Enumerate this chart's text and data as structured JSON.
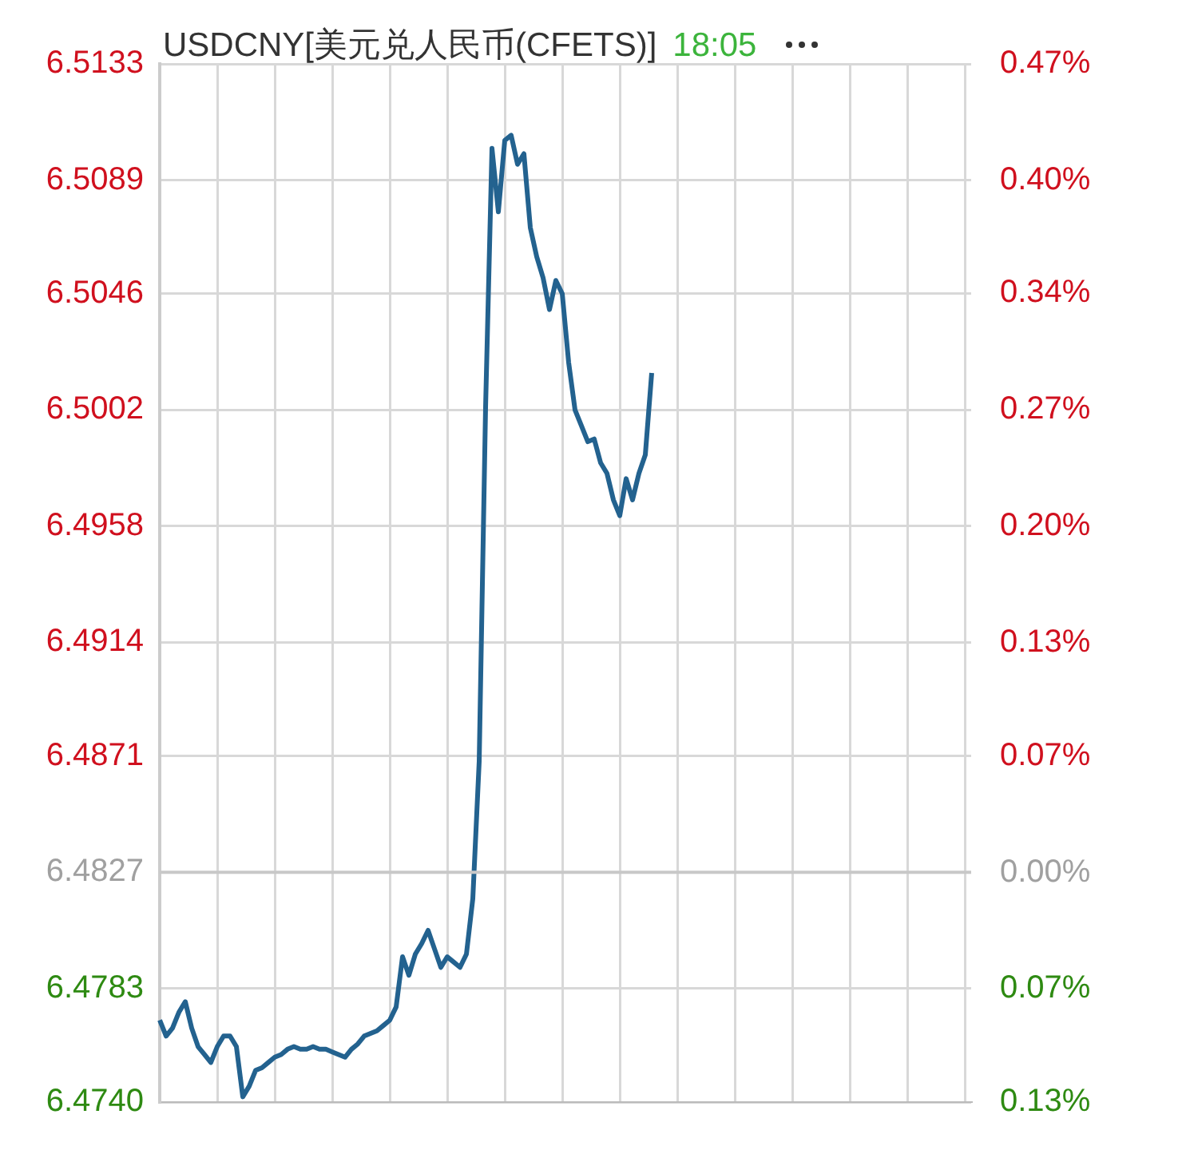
{
  "chart_data": {
    "type": "line",
    "title": "USDCNY[美元兑人民币(CFETS)]",
    "subtitle": "18:05",
    "categories": [
      null,
      null,
      null,
      null,
      null,
      null,
      null,
      null,
      null,
      null,
      null,
      null,
      null,
      null,
      null,
      null,
      null,
      null,
      null,
      null,
      null,
      null,
      null,
      null,
      null,
      null,
      null,
      null,
      null,
      null,
      null,
      null,
      null,
      null,
      null,
      null,
      null,
      null,
      null,
      null,
      null,
      null,
      null,
      null,
      null,
      null,
      null,
      null,
      null,
      null,
      null,
      null,
      null,
      null,
      null,
      null,
      null,
      null,
      null,
      null,
      null,
      null,
      null,
      null,
      null,
      null,
      null,
      null,
      null,
      null,
      null,
      null,
      null,
      null,
      null,
      null,
      null,
      null,
      null,
      null,
      null,
      null,
      null,
      null,
      null,
      null,
      null,
      null,
      null,
      null,
      null,
      null,
      null,
      null,
      null,
      null,
      null,
      null,
      null,
      null,
      null,
      null,
      null,
      null,
      null,
      null,
      null,
      null,
      null,
      null,
      null,
      null,
      null,
      null,
      null,
      null,
      null,
      null,
      null,
      null,
      null,
      null,
      null,
      null,
      null,
      null,
      null,
      null
    ],
    "series": [
      {
        "color": "#23628f",
        "values": [
          6.4771,
          6.4765,
          6.4768,
          6.4774,
          6.4778,
          6.4768,
          6.4761,
          6.4758,
          6.4755,
          6.4761,
          6.4765,
          6.4765,
          6.4761,
          6.4742,
          6.4746,
          6.4752,
          6.4753,
          6.4755,
          6.4757,
          6.4758,
          6.476,
          6.4761,
          6.476,
          6.476,
          6.4761,
          6.476,
          6.476,
          6.4759,
          6.4758,
          6.4757,
          6.476,
          6.4762,
          6.4765,
          6.4766,
          6.4767,
          6.4769,
          6.4771,
          6.4776,
          6.4795,
          6.4788,
          6.4796,
          6.48,
          6.4805,
          6.4798,
          6.4791,
          6.4795,
          6.4793,
          6.4791,
          6.4796,
          6.4817,
          6.4869,
          6.5003,
          6.5101,
          6.5077,
          6.5104,
          6.5106,
          6.5095,
          6.5099,
          6.5071,
          6.506,
          6.5052,
          6.504,
          6.5051,
          6.5046,
          6.502,
          6.5002,
          6.4996,
          6.499,
          6.4991,
          6.4982,
          6.4978,
          6.4968,
          6.4962,
          6.4976,
          6.4968,
          6.4978,
          6.4985,
          6.5016,
          null,
          null,
          null,
          null,
          null,
          null,
          null,
          null,
          null,
          null,
          null,
          null,
          null,
          null,
          null,
          null,
          null,
          null,
          null,
          null,
          null,
          null,
          null,
          null,
          null,
          null,
          null,
          null,
          null,
          null,
          null,
          null,
          null,
          null,
          null,
          null,
          null,
          null,
          null,
          null,
          null,
          null,
          null,
          null,
          null,
          null,
          null,
          null,
          null,
          null
        ]
      }
    ],
    "ylim": [
      6.474,
      6.5133
    ],
    "yticks": [
      {
        "value": 6.474,
        "label": "6.4740"
      },
      6.4783,
      6.4827,
      6.4871,
      6.4914,
      6.4958,
      6.5002,
      6.5046,
      6.5089,
      6.5133
    ],
    "y2lim": [
      -0.134,
      0.472
    ],
    "y2ticks": [
      {
        "value": -0.134,
        "label": "0.13%"
      },
      {
        "value": -0.068,
        "label": "0.07%"
      },
      {
        "value": 0,
        "label": "0.00%"
      },
      {
        "value": 0.068,
        "label": "0.07%"
      },
      {
        "value": 0.134,
        "label": "0.13%"
      },
      {
        "value": 0.202,
        "label": "0.20%"
      },
      {
        "value": 0.27,
        "label": "0.27%"
      },
      {
        "value": 0.338,
        "label": "0.34%"
      },
      {
        "value": 0.404,
        "label": "0.40%"
      },
      {
        "value": 0.472,
        "label": "0.47%"
      }
    ],
    "ref_lines": [
      {
        "axis": "y",
        "value": 6.4827,
        "color": "#c8c8c8"
      }
    ],
    "grid": true,
    "legend": false,
    "tick_labels": "y",
    "marker": "none",
    "line_style": "solid"
  }
}
